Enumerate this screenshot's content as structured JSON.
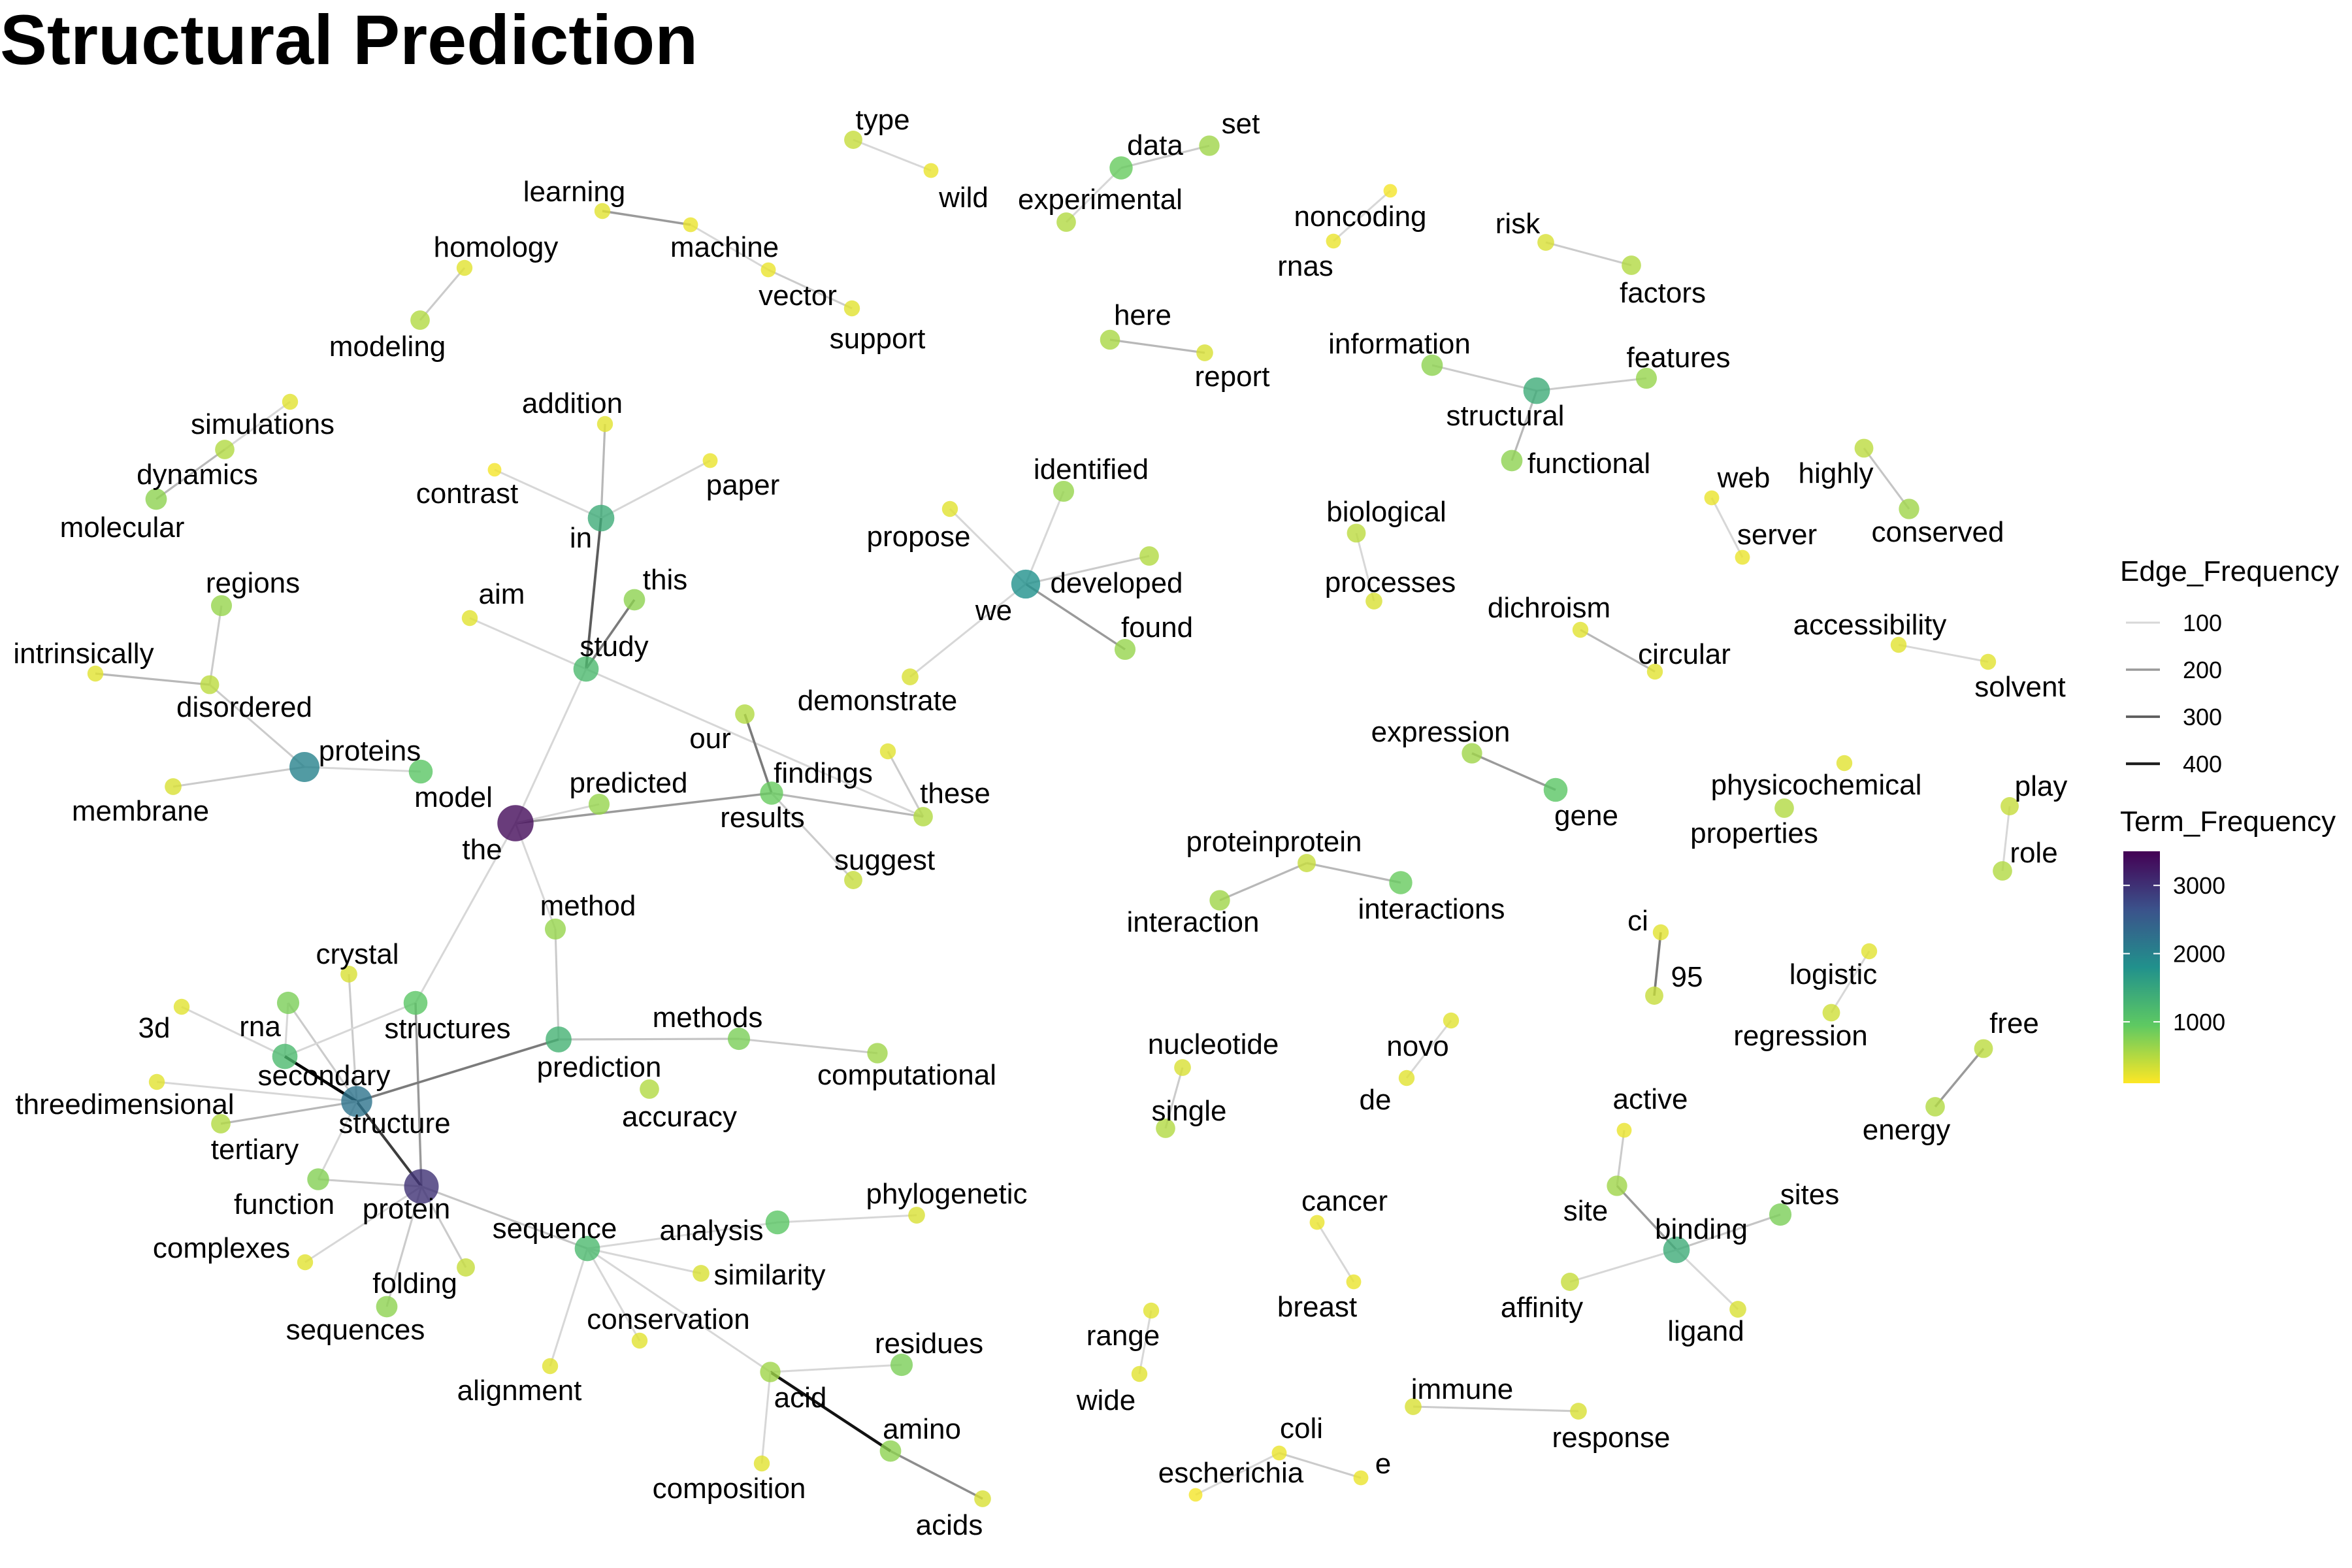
{
  "title": "Structural Prediction",
  "chart_data": {
    "type": "network",
    "title": "Structural Prediction",
    "nodes": [
      {
        "id": "type",
        "freq": 400
      },
      {
        "id": "wild",
        "freq": 200
      },
      {
        "id": "data",
        "freq": 900
      },
      {
        "id": "set",
        "freq": 600
      },
      {
        "id": "experimental",
        "freq": 500
      },
      {
        "id": "learning",
        "freq": 250
      },
      {
        "id": "machine",
        "freq": 200
      },
      {
        "id": "vector",
        "freq": 200
      },
      {
        "id": "support",
        "freq": 250
      },
      {
        "id": "homology",
        "freq": 250
      },
      {
        "id": "modeling",
        "freq": 500
      },
      {
        "id": "noncoding",
        "freq": 150
      },
      {
        "id": "rnas",
        "freq": 200
      },
      {
        "id": "risk",
        "freq": 300
      },
      {
        "id": "factors",
        "freq": 500
      },
      {
        "id": "here",
        "freq": 550
      },
      {
        "id": "report",
        "freq": 300
      },
      {
        "id": "information",
        "freq": 700
      },
      {
        "id": "features",
        "freq": 650
      },
      {
        "id": "structural",
        "freq": 1400
      },
      {
        "id": "functional",
        "freq": 700
      },
      {
        "id": "simulations",
        "freq": 250
      },
      {
        "id": "dynamics",
        "freq": 500
      },
      {
        "id": "molecular",
        "freq": 700
      },
      {
        "id": "addition",
        "freq": 250
      },
      {
        "id": "contrast",
        "freq": 150
      },
      {
        "id": "paper",
        "freq": 200
      },
      {
        "id": "in",
        "freq": 1400
      },
      {
        "id": "identified",
        "freq": 650
      },
      {
        "id": "propose",
        "freq": 250
      },
      {
        "id": "developed",
        "freq": 500
      },
      {
        "id": "we",
        "freq": 1800
      },
      {
        "id": "found",
        "freq": 650
      },
      {
        "id": "web",
        "freq": 200
      },
      {
        "id": "server",
        "freq": 200
      },
      {
        "id": "highly",
        "freq": 450
      },
      {
        "id": "conserved",
        "freq": 600
      },
      {
        "id": "biological",
        "freq": 450
      },
      {
        "id": "processes",
        "freq": 300
      },
      {
        "id": "dichroism",
        "freq": 250
      },
      {
        "id": "circular",
        "freq": 250
      },
      {
        "id": "accessibility",
        "freq": 250
      },
      {
        "id": "solvent",
        "freq": 250
      },
      {
        "id": "regions",
        "freq": 650
      },
      {
        "id": "intrinsically",
        "freq": 250
      },
      {
        "id": "disordered",
        "freq": 450
      },
      {
        "id": "membrane",
        "freq": 300
      },
      {
        "id": "proteins",
        "freq": 2000
      },
      {
        "id": "model",
        "freq": 1000
      },
      {
        "id": "aim",
        "freq": 250
      },
      {
        "id": "this",
        "freq": 700
      },
      {
        "id": "study",
        "freq": 1200
      },
      {
        "id": "demonstrate",
        "freq": 300
      },
      {
        "id": "our",
        "freq": 500
      },
      {
        "id": "findings",
        "freq": 250
      },
      {
        "id": "these",
        "freq": 500
      },
      {
        "id": "results",
        "freq": 900
      },
      {
        "id": "suggest",
        "freq": 400
      },
      {
        "id": "predicted",
        "freq": 650
      },
      {
        "id": "the",
        "freq": 3400
      },
      {
        "id": "expression",
        "freq": 600
      },
      {
        "id": "gene",
        "freq": 1000
      },
      {
        "id": "physicochemical",
        "freq": 250
      },
      {
        "id": "properties",
        "freq": 500
      },
      {
        "id": "play",
        "freq": 400
      },
      {
        "id": "role",
        "freq": 500
      },
      {
        "id": "proteinprotein",
        "freq": 400
      },
      {
        "id": "interaction",
        "freq": 600
      },
      {
        "id": "interactions",
        "freq": 900
      },
      {
        "id": "method",
        "freq": 650
      },
      {
        "id": "ci",
        "freq": 250
      },
      {
        "id": "95",
        "freq": 400
      },
      {
        "id": "logistic",
        "freq": 250
      },
      {
        "id": "regression",
        "freq": 350
      },
      {
        "id": "crystal",
        "freq": 300
      },
      {
        "id": "3d",
        "freq": 250
      },
      {
        "id": "rna",
        "freq": 800
      },
      {
        "id": "structures",
        "freq": 1000
      },
      {
        "id": "secondary",
        "freq": 1200
      },
      {
        "id": "prediction",
        "freq": 1300
      },
      {
        "id": "methods",
        "freq": 800
      },
      {
        "id": "computational",
        "freq": 600
      },
      {
        "id": "accuracy",
        "freq": 500
      },
      {
        "id": "threedimensional",
        "freq": 250
      },
      {
        "id": "structure",
        "freq": 2200
      },
      {
        "id": "tertiary",
        "freq": 500
      },
      {
        "id": "nucleotide",
        "freq": 300
      },
      {
        "id": "single",
        "freq": 500
      },
      {
        "id": "novo",
        "freq": 250
      },
      {
        "id": "de",
        "freq": 250
      },
      {
        "id": "free",
        "freq": 450
      },
      {
        "id": "energy",
        "freq": 500
      },
      {
        "id": "active",
        "freq": 200
      },
      {
        "id": "site",
        "freq": 600
      },
      {
        "id": "sites",
        "freq": 800
      },
      {
        "id": "binding",
        "freq": 1400
      },
      {
        "id": "affinity",
        "freq": 400
      },
      {
        "id": "ligand",
        "freq": 300
      },
      {
        "id": "function",
        "freq": 750
      },
      {
        "id": "protein",
        "freq": 3000
      },
      {
        "id": "complexes",
        "freq": 250
      },
      {
        "id": "folding",
        "freq": 400
      },
      {
        "id": "sequences",
        "freq": 700
      },
      {
        "id": "sequence",
        "freq": 1200
      },
      {
        "id": "analysis",
        "freq": 1000
      },
      {
        "id": "phylogenetic",
        "freq": 300
      },
      {
        "id": "similarity",
        "freq": 300
      },
      {
        "id": "conservation",
        "freq": 250
      },
      {
        "id": "alignment",
        "freq": 250
      },
      {
        "id": "residues",
        "freq": 800
      },
      {
        "id": "acid",
        "freq": 600
      },
      {
        "id": "amino",
        "freq": 700
      },
      {
        "id": "composition",
        "freq": 250
      },
      {
        "id": "acids",
        "freq": 300
      },
      {
        "id": "cancer",
        "freq": 200
      },
      {
        "id": "breast",
        "freq": 200
      },
      {
        "id": "range",
        "freq": 250
      },
      {
        "id": "wide",
        "freq": 250
      },
      {
        "id": "immune",
        "freq": 300
      },
      {
        "id": "response",
        "freq": 300
      },
      {
        "id": "coli",
        "freq": 200
      },
      {
        "id": "e",
        "freq": 200
      },
      {
        "id": "escherichia",
        "freq": 150
      }
    ],
    "edges": [
      {
        "from": "type",
        "to": "wild",
        "freq": 100
      },
      {
        "from": "data",
        "to": "set",
        "freq": 120
      },
      {
        "from": "data",
        "to": "experimental",
        "freq": 100
      },
      {
        "from": "learning",
        "to": "machine",
        "freq": 200
      },
      {
        "from": "machine",
        "to": "vector",
        "freq": 100
      },
      {
        "from": "vector",
        "to": "support",
        "freq": 120
      },
      {
        "from": "homology",
        "to": "modeling",
        "freq": 120
      },
      {
        "from": "noncoding",
        "to": "rnas",
        "freq": 100
      },
      {
        "from": "risk",
        "to": "factors",
        "freq": 120
      },
      {
        "from": "here",
        "to": "report",
        "freq": 150
      },
      {
        "from": "information",
        "to": "structural",
        "freq": 120
      },
      {
        "from": "structural",
        "to": "features",
        "freq": 120
      },
      {
        "from": "structural",
        "to": "functional",
        "freq": 150
      },
      {
        "from": "simulations",
        "to": "dynamics",
        "freq": 100
      },
      {
        "from": "dynamics",
        "to": "molecular",
        "freq": 150
      },
      {
        "from": "addition",
        "to": "in",
        "freq": 150
      },
      {
        "from": "contrast",
        "to": "in",
        "freq": 100
      },
      {
        "from": "paper",
        "to": "in",
        "freq": 100
      },
      {
        "from": "in",
        "to": "study",
        "freq": 300
      },
      {
        "from": "identified",
        "to": "we",
        "freq": 100
      },
      {
        "from": "propose",
        "to": "we",
        "freq": 100
      },
      {
        "from": "developed",
        "to": "we",
        "freq": 120
      },
      {
        "from": "we",
        "to": "found",
        "freq": 200
      },
      {
        "from": "we",
        "to": "demonstrate",
        "freq": 100
      },
      {
        "from": "web",
        "to": "server",
        "freq": 100
      },
      {
        "from": "highly",
        "to": "conserved",
        "freq": 130
      },
      {
        "from": "biological",
        "to": "processes",
        "freq": 100
      },
      {
        "from": "dichroism",
        "to": "circular",
        "freq": 150
      },
      {
        "from": "accessibility",
        "to": "solvent",
        "freq": 100
      },
      {
        "from": "regions",
        "to": "disordered",
        "freq": 120
      },
      {
        "from": "intrinsically",
        "to": "disordered",
        "freq": 150
      },
      {
        "from": "disordered",
        "to": "proteins",
        "freq": 120
      },
      {
        "from": "membrane",
        "to": "proteins",
        "freq": 120
      },
      {
        "from": "proteins",
        "to": "model",
        "freq": 100
      },
      {
        "from": "aim",
        "to": "study",
        "freq": 100
      },
      {
        "from": "this",
        "to": "study",
        "freq": 250
      },
      {
        "from": "study",
        "to": "the",
        "freq": 100
      },
      {
        "from": "study",
        "to": "these",
        "freq": 100
      },
      {
        "from": "our",
        "to": "results",
        "freq": 250
      },
      {
        "from": "findings",
        "to": "these",
        "freq": 120
      },
      {
        "from": "results",
        "to": "these",
        "freq": 150
      },
      {
        "from": "results",
        "to": "suggest",
        "freq": 120
      },
      {
        "from": "the",
        "to": "results",
        "freq": 200
      },
      {
        "from": "the",
        "to": "predicted",
        "freq": 100
      },
      {
        "from": "the",
        "to": "method",
        "freq": 100
      },
      {
        "from": "the",
        "to": "structures",
        "freq": 100
      },
      {
        "from": "expression",
        "to": "gene",
        "freq": 200
      },
      {
        "from": "proteinprotein",
        "to": "interaction",
        "freq": 150
      },
      {
        "from": "proteinprotein",
        "to": "interactions",
        "freq": 150
      },
      {
        "from": "play",
        "to": "role",
        "freq": 100
      },
      {
        "from": "method",
        "to": "prediction",
        "freq": 120
      },
      {
        "from": "ci",
        "to": "95",
        "freq": 250
      },
      {
        "from": "logistic",
        "to": "regression",
        "freq": 100
      },
      {
        "from": "crystal",
        "to": "structure",
        "freq": 120
      },
      {
        "from": "3d",
        "to": "secondary",
        "freq": 100
      },
      {
        "from": "rna",
        "to": "structure",
        "freq": 120
      },
      {
        "from": "rna",
        "to": "secondary",
        "freq": 100
      },
      {
        "from": "structures",
        "to": "secondary",
        "freq": 100
      },
      {
        "from": "structures",
        "to": "protein",
        "freq": 200
      },
      {
        "from": "secondary",
        "to": "structure",
        "freq": 450
      },
      {
        "from": "structure",
        "to": "prediction",
        "freq": 250
      },
      {
        "from": "prediction",
        "to": "methods",
        "freq": 130
      },
      {
        "from": "methods",
        "to": "computational",
        "freq": 120
      },
      {
        "from": "threedimensional",
        "to": "structure",
        "freq": 100
      },
      {
        "from": "tertiary",
        "to": "structure",
        "freq": 150
      },
      {
        "from": "structure",
        "to": "protein",
        "freq": 350
      },
      {
        "from": "structure",
        "to": "function",
        "freq": 100
      },
      {
        "from": "nucleotide",
        "to": "single",
        "freq": 120
      },
      {
        "from": "novo",
        "to": "de",
        "freq": 100
      },
      {
        "from": "free",
        "to": "energy",
        "freq": 200
      },
      {
        "from": "active",
        "to": "site",
        "freq": 120
      },
      {
        "from": "site",
        "to": "binding",
        "freq": 200
      },
      {
        "from": "binding",
        "to": "sites",
        "freq": 130
      },
      {
        "from": "binding",
        "to": "affinity",
        "freq": 100
      },
      {
        "from": "binding",
        "to": "ligand",
        "freq": 100
      },
      {
        "from": "function",
        "to": "protein",
        "freq": 120
      },
      {
        "from": "protein",
        "to": "complexes",
        "freq": 100
      },
      {
        "from": "protein",
        "to": "folding",
        "freq": 120
      },
      {
        "from": "protein",
        "to": "sequences",
        "freq": 120
      },
      {
        "from": "protein",
        "to": "sequence",
        "freq": 130
      },
      {
        "from": "sequence",
        "to": "analysis",
        "freq": 100
      },
      {
        "from": "analysis",
        "to": "phylogenetic",
        "freq": 100
      },
      {
        "from": "sequence",
        "to": "similarity",
        "freq": 100
      },
      {
        "from": "sequence",
        "to": "conservation",
        "freq": 100
      },
      {
        "from": "sequence",
        "to": "alignment",
        "freq": 100
      },
      {
        "from": "sequence",
        "to": "acid",
        "freq": 100
      },
      {
        "from": "acid",
        "to": "residues",
        "freq": 100
      },
      {
        "from": "acid",
        "to": "amino",
        "freq": 420
      },
      {
        "from": "acid",
        "to": "composition",
        "freq": 100
      },
      {
        "from": "amino",
        "to": "acids",
        "freq": 220
      },
      {
        "from": "cancer",
        "to": "breast",
        "freq": 100
      },
      {
        "from": "range",
        "to": "wide",
        "freq": 100
      },
      {
        "from": "immune",
        "to": "response",
        "freq": 120
      },
      {
        "from": "coli",
        "to": "e",
        "freq": 120
      },
      {
        "from": "coli",
        "to": "escherichia",
        "freq": 100
      }
    ],
    "legend": {
      "edge_title": "Edge_Frequency",
      "edge_ticks": [
        "100",
        "200",
        "300",
        "400"
      ],
      "term_title": "Term_Frequency",
      "term_ticks": [
        {
          "label": "3000",
          "value": 3000
        },
        {
          "label": "2000",
          "value": 2000
        },
        {
          "label": "1000",
          "value": 1000
        }
      ],
      "term_range": [
        100,
        3500
      ],
      "placement": "right"
    }
  }
}
